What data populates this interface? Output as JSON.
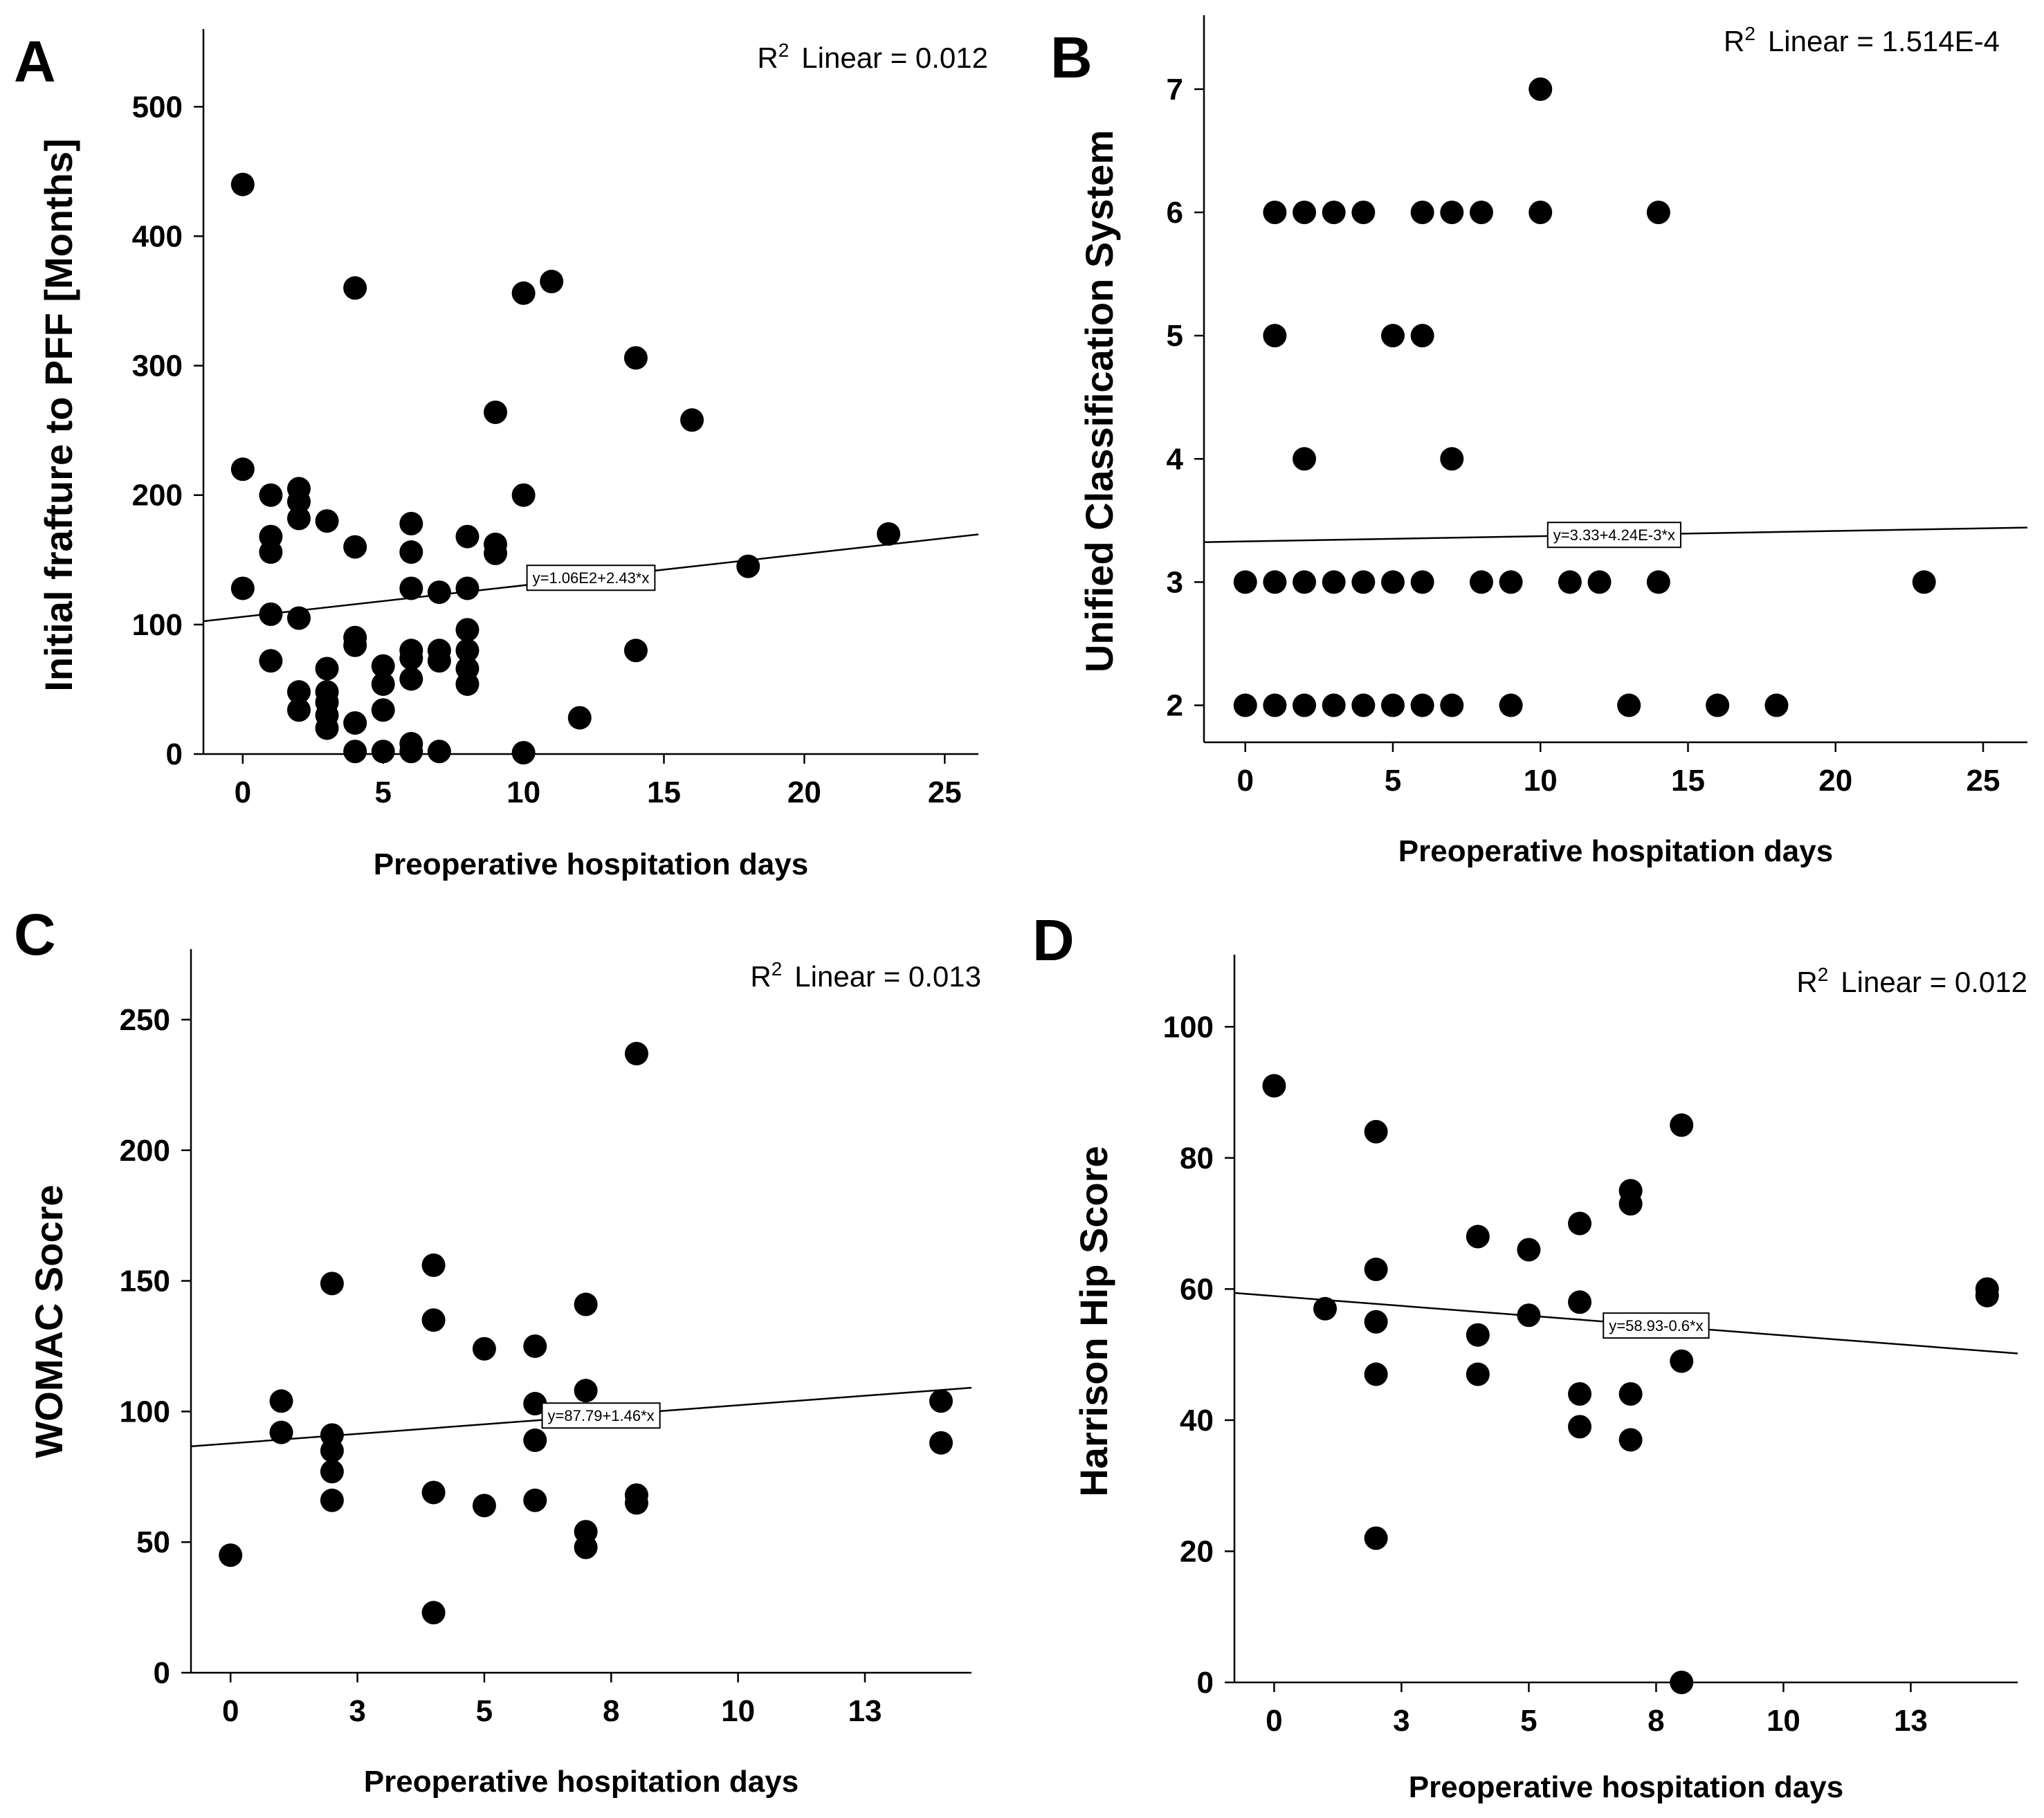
{
  "chart_data": [
    {
      "type": "scatter",
      "panel": "A",
      "title": "",
      "xlabel": "Preoperative hospitation days",
      "ylabel": "Initial frafture to PFF [Months]",
      "xlim": [
        -1.4,
        26.2
      ],
      "ylim": [
        0,
        560
      ],
      "xticks": [
        0,
        5,
        10,
        15,
        20,
        25
      ],
      "yticks": [
        0,
        100,
        200,
        300,
        400,
        500
      ],
      "xtick_labels": [
        "0",
        "5",
        "10",
        "15",
        "20",
        "25"
      ],
      "ytick_labels": [
        "0",
        "100",
        "200",
        "300",
        "400",
        "500"
      ],
      "r2_prefix": "R",
      "r2_exp": "2",
      "r2_label": "Linear = 0.012",
      "equation": "y=1.06E2+2.43*x",
      "fit": {
        "intercept": 106,
        "slope": 2.43
      },
      "eq_anchor": 12.4,
      "points": [
        [
          0,
          440
        ],
        [
          0,
          220
        ],
        [
          0,
          128
        ],
        [
          1,
          200
        ],
        [
          1,
          168
        ],
        [
          1,
          156
        ],
        [
          1,
          108
        ],
        [
          1,
          72
        ],
        [
          2,
          205
        ],
        [
          2,
          195
        ],
        [
          2,
          182
        ],
        [
          2,
          105
        ],
        [
          2,
          48
        ],
        [
          2,
          34
        ],
        [
          3,
          180
        ],
        [
          3,
          66
        ],
        [
          3,
          48
        ],
        [
          3,
          40
        ],
        [
          3,
          30
        ],
        [
          3,
          20
        ],
        [
          4,
          360
        ],
        [
          4,
          160
        ],
        [
          4,
          90
        ],
        [
          4,
          84
        ],
        [
          4,
          24
        ],
        [
          4,
          2
        ],
        [
          5,
          68
        ],
        [
          5,
          54
        ],
        [
          5,
          34
        ],
        [
          5,
          2
        ],
        [
          6,
          178
        ],
        [
          6,
          156
        ],
        [
          6,
          128
        ],
        [
          6,
          80
        ],
        [
          6,
          74
        ],
        [
          6,
          58
        ],
        [
          6,
          8
        ],
        [
          6,
          2
        ],
        [
          7,
          125
        ],
        [
          7,
          80
        ],
        [
          7,
          72
        ],
        [
          7,
          2
        ],
        [
          8,
          168
        ],
        [
          8,
          128
        ],
        [
          8,
          96
        ],
        [
          8,
          80
        ],
        [
          8,
          66
        ],
        [
          8,
          54
        ],
        [
          9,
          264
        ],
        [
          9,
          162
        ],
        [
          9,
          155
        ],
        [
          10,
          356
        ],
        [
          10,
          200
        ],
        [
          10,
          1
        ],
        [
          11,
          365
        ],
        [
          12,
          28
        ],
        [
          14,
          306
        ],
        [
          14,
          80
        ],
        [
          16,
          258
        ],
        [
          18,
          145
        ],
        [
          23,
          170
        ]
      ]
    },
    {
      "type": "scatter",
      "panel": "B",
      "title": "",
      "xlabel": "Preoperative hospitation days",
      "ylabel": "Unified Classification System",
      "xlim": [
        -1.4,
        26.5
      ],
      "ylim": [
        1.7,
        7.6
      ],
      "xticks": [
        0,
        5,
        10,
        15,
        20,
        25
      ],
      "yticks": [
        2,
        3,
        4,
        5,
        6,
        7
      ],
      "xtick_labels": [
        "0",
        "5",
        "10",
        "15",
        "20",
        "25"
      ],
      "ytick_labels": [
        "2",
        "3",
        "4",
        "5",
        "6",
        "7"
      ],
      "r2_prefix": "R",
      "r2_exp": "2",
      "r2_label": "Linear = 1.514E-4",
      "equation": "y=3.33+4.24E-3*x",
      "fit": {
        "intercept": 3.33,
        "slope": 0.00424
      },
      "eq_anchor": 12.5,
      "points": [
        [
          10,
          7
        ],
        [
          1,
          6
        ],
        [
          2,
          6
        ],
        [
          3,
          6
        ],
        [
          4,
          6
        ],
        [
          6,
          6
        ],
        [
          7,
          6
        ],
        [
          8,
          6
        ],
        [
          10,
          6
        ],
        [
          14,
          6
        ],
        [
          1,
          5
        ],
        [
          5,
          5
        ],
        [
          6,
          5
        ],
        [
          2,
          4
        ],
        [
          7,
          4
        ],
        [
          0,
          3
        ],
        [
          1,
          3
        ],
        [
          2,
          3
        ],
        [
          3,
          3
        ],
        [
          4,
          3
        ],
        [
          5,
          3
        ],
        [
          6,
          3
        ],
        [
          8,
          3
        ],
        [
          9,
          3
        ],
        [
          11,
          3
        ],
        [
          12,
          3
        ],
        [
          14,
          3
        ],
        [
          23,
          3
        ],
        [
          0,
          2
        ],
        [
          1,
          2
        ],
        [
          2,
          2
        ],
        [
          3,
          2
        ],
        [
          4,
          2
        ],
        [
          5,
          2
        ],
        [
          6,
          2
        ],
        [
          7,
          2
        ],
        [
          9,
          2
        ],
        [
          13,
          2
        ],
        [
          16,
          2
        ],
        [
          18,
          2
        ]
      ]
    },
    {
      "type": "scatter",
      "panel": "C",
      "title": "",
      "xlabel": "Preoperative hospitation days",
      "ylabel": "WOMAC Socre",
      "xlim": [
        -0.78,
        14.6
      ],
      "ylim": [
        0,
        277
      ],
      "xticks": [
        0,
        2.5,
        5,
        7.5,
        10,
        12.5
      ],
      "yticks": [
        0,
        50,
        100,
        150,
        200,
        250
      ],
      "xtick_labels": [
        "0",
        "3",
        "5",
        "8",
        "10",
        "13"
      ],
      "ytick_labels": [
        "0",
        "50",
        "100",
        "150",
        "200",
        "250"
      ],
      "r2_prefix": "R",
      "r2_exp": "2",
      "r2_label": "Linear = 0.013",
      "equation": "y=87.79+1.46*x",
      "fit": {
        "intercept": 87.79,
        "slope": 1.46
      },
      "eq_anchor": 7.3,
      "points": [
        [
          0,
          45
        ],
        [
          1,
          104
        ],
        [
          1,
          92
        ],
        [
          2,
          149
        ],
        [
          2,
          91
        ],
        [
          2,
          85
        ],
        [
          2,
          77
        ],
        [
          2,
          66
        ],
        [
          4,
          156
        ],
        [
          4,
          135
        ],
        [
          4,
          69
        ],
        [
          4,
          23
        ],
        [
          5,
          124
        ],
        [
          5,
          64
        ],
        [
          6,
          125
        ],
        [
          6,
          103
        ],
        [
          6,
          89
        ],
        [
          6,
          66
        ],
        [
          7,
          141
        ],
        [
          7,
          108
        ],
        [
          7,
          54
        ],
        [
          7,
          48
        ],
        [
          8,
          237
        ],
        [
          8,
          68
        ],
        [
          8,
          65
        ],
        [
          14,
          104
        ],
        [
          14,
          88
        ]
      ]
    },
    {
      "type": "scatter",
      "panel": "D",
      "title": "",
      "xlabel": "Preoperative hospitation days",
      "ylabel": "Harrison Hip Score",
      "xlim": [
        -0.78,
        14.6
      ],
      "ylim": [
        0,
        111
      ],
      "xticks": [
        0,
        2.5,
        5,
        7.5,
        10,
        12.5
      ],
      "yticks": [
        0,
        20,
        40,
        60,
        80,
        100
      ],
      "xtick_labels": [
        "0",
        "3",
        "5",
        "8",
        "10",
        "13"
      ],
      "ytick_labels": [
        "0",
        "20",
        "40",
        "60",
        "80",
        "100"
      ],
      "r2_prefix": "R",
      "r2_exp": "2",
      "r2_label": "Linear = 0.012",
      "equation": "y=58.93-0.6*x",
      "fit": {
        "intercept": 58.93,
        "slope": -0.6
      },
      "eq_anchor": 7.5,
      "points": [
        [
          0,
          91
        ],
        [
          1,
          57
        ],
        [
          2,
          84
        ],
        [
          2,
          63
        ],
        [
          2,
          55
        ],
        [
          2,
          47
        ],
        [
          2,
          22
        ],
        [
          4,
          68
        ],
        [
          4,
          53
        ],
        [
          4,
          47
        ],
        [
          5,
          66
        ],
        [
          5,
          56
        ],
        [
          6,
          70
        ],
        [
          6,
          58
        ],
        [
          6,
          44
        ],
        [
          6,
          39
        ],
        [
          7,
          75
        ],
        [
          7,
          73
        ],
        [
          7,
          44
        ],
        [
          7,
          37
        ],
        [
          8,
          85
        ],
        [
          8,
          49
        ],
        [
          8,
          0
        ],
        [
          14,
          60
        ],
        [
          14,
          59
        ]
      ]
    }
  ]
}
